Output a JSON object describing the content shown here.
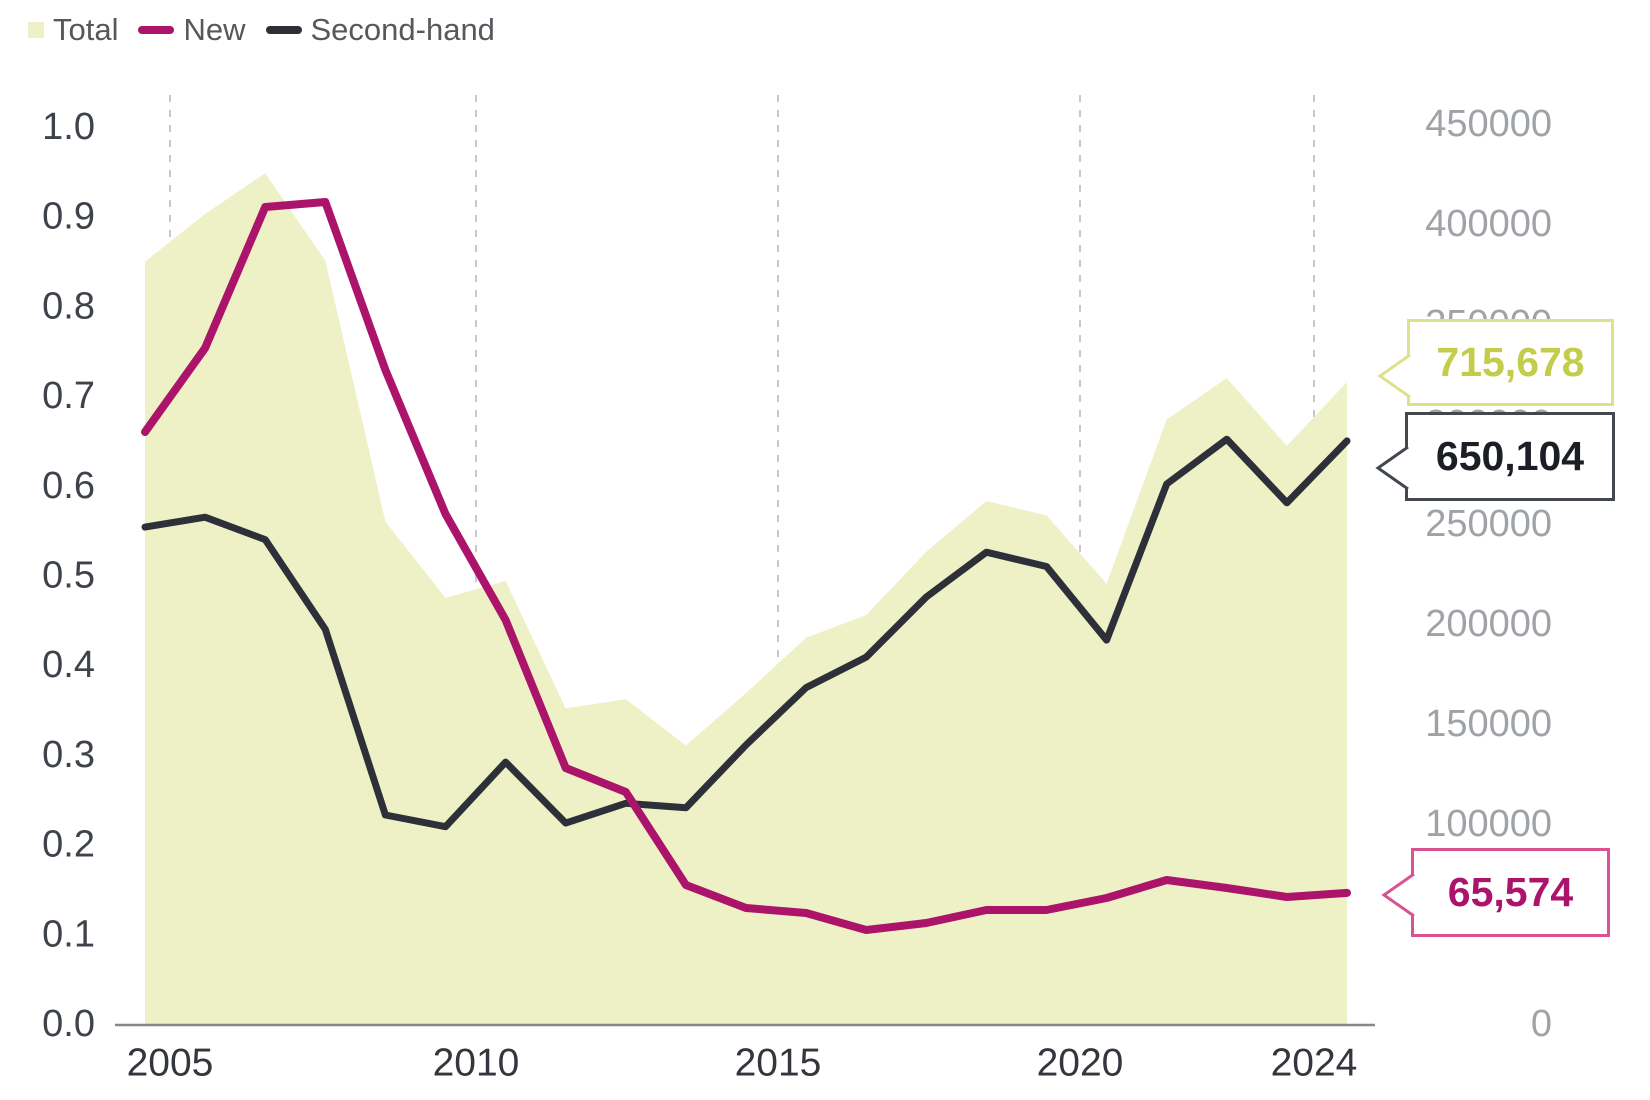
{
  "legend": {
    "items": [
      {
        "label": "Total",
        "swatch": "area-swatch"
      },
      {
        "label": "New",
        "swatch": "line-swatch"
      },
      {
        "label": "Second-hand",
        "swatch": "line-swatch"
      }
    ]
  },
  "colors": {
    "total_fill": "#eef0c6",
    "new_line": "#ac136b",
    "second_hand_line": "#2d3038",
    "grid": "#c6c8ca",
    "axis_line": "#85888c",
    "left_axis_text": "#3e434b",
    "right_axis_text": "#9fa3a7",
    "x_axis_text": "#33363c",
    "legend_text": "#55585c",
    "total_callout_text": "#c3cc4b",
    "total_callout_border": "#dde289",
    "second_hand_callout_text": "#1b1e24",
    "second_hand_callout_border": "#43474e",
    "new_callout_text": "#ac136b",
    "new_callout_border": "#d8538f"
  },
  "left_axis": {
    "ticks": [
      "1.0",
      "0.9",
      "0.8",
      "0.7",
      "0.6",
      "0.5",
      "0.4",
      "0.3",
      "0.2",
      "0.1",
      "0.0"
    ]
  },
  "right_axis": {
    "ticks": [
      "450000",
      "400000",
      "350000",
      "300000",
      "250000",
      "200000",
      "150000",
      "100000",
      "0"
    ]
  },
  "x_axis": {
    "ticks": [
      "2005",
      "2010",
      "2015",
      "2020",
      "2024"
    ]
  },
  "callouts": {
    "total": {
      "value": "715,678"
    },
    "second_hand": {
      "value": "650,104"
    },
    "new": {
      "value": "65,574"
    }
  },
  "chart_data": {
    "type": "area+line",
    "title": "",
    "x": [
      2004,
      2005,
      2006,
      2007,
      2008,
      2009,
      2010,
      2011,
      2012,
      2013,
      2014,
      2015,
      2016,
      2017,
      2018,
      2019,
      2020,
      2021,
      2022,
      2023,
      2024
    ],
    "series": [
      {
        "name": "Total",
        "type": "area",
        "axis": "left_millions",
        "values": [
          850000,
          903000,
          948500,
          851000,
          560000,
          475000,
          494000,
          352000,
          362000,
          310500,
          369000,
          430500,
          456000,
          526500,
          583000,
          567000,
          491000,
          674000,
          720000,
          644500,
          715678
        ]
      },
      {
        "name": "New",
        "type": "line",
        "axis": "right",
        "values": [
          296000,
          338000,
          408500,
          411000,
          327000,
          255000,
          202000,
          128000,
          116000,
          69500,
          58000,
          55500,
          47000,
          50500,
          57000,
          57000,
          63000,
          72000,
          68000,
          63500,
          65574
        ]
      },
      {
        "name": "Second-hand",
        "type": "line",
        "axis": "left_millions",
        "values": [
          554000,
          565000,
          540000,
          440000,
          233000,
          220000,
          292000,
          224000,
          246000,
          241000,
          311000,
          375000,
          409000,
          476000,
          526000,
          510000,
          428000,
          602000,
          652000,
          581000,
          650104
        ]
      }
    ],
    "left_axis_range": [
      0.0,
      1.0
    ],
    "left_axis_note": "Total and Second-hand are plotted as value/1,000,000 against the 0.0-1.0 axis",
    "right_axis_range": [
      0,
      450000
    ],
    "end_labels": {
      "Total": 715678,
      "Second-hand": 650104,
      "New": 65574
    },
    "grid": "vertical-dashed",
    "legend_position": "top-left",
    "xlabel": "",
    "ylabel": ""
  }
}
